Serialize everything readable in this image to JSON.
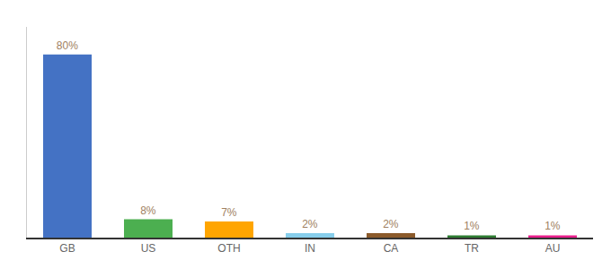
{
  "chart_data": {
    "type": "bar",
    "categories": [
      "GB",
      "US",
      "OTH",
      "IN",
      "CA",
      "TR",
      "AU"
    ],
    "values": [
      80,
      8,
      7,
      2,
      2,
      1,
      1
    ],
    "value_labels": [
      "80%",
      "8%",
      "7%",
      "2%",
      "2%",
      "1%",
      "1%"
    ],
    "colors": [
      "#4472c4",
      "#4caf50",
      "#ffa500",
      "#87ceeb",
      "#8b5a2b",
      "#2e7d32",
      "#e91e8c"
    ],
    "ylim": [
      0,
      92
    ],
    "data_labels": true,
    "tick_labels": "x",
    "grid": false
  }
}
